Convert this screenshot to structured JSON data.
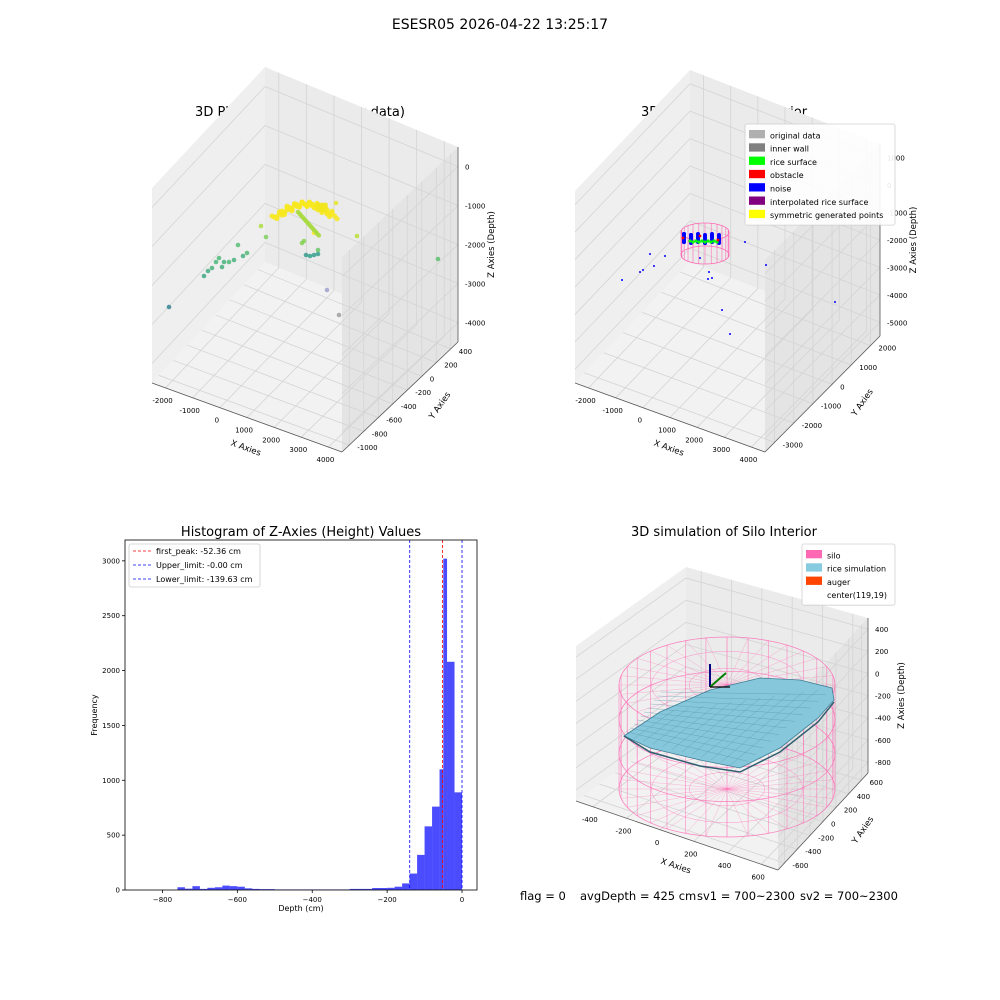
{
  "figure": {
    "suptitle": "ESESR05 2026-04-22 13:25:17",
    "footer": {
      "flag": "flag = 0",
      "avg": "avgDepth = 425 cm",
      "sv1": "sv1 = 700~2300",
      "sv2": "sv2 = 700~2300"
    }
  },
  "chart_data": [
    {
      "type": "scatter",
      "projection": "3d",
      "title": "3D Plot of Silo Interior(row data)",
      "xlabel": "X Axies",
      "ylabel": "Y Axies",
      "zlabel": "Z Axies (Depth)",
      "x_ticks": [
        "-2000",
        "-1000",
        "0",
        "1000",
        "2000",
        "3000",
        "4000"
      ],
      "y_ticks": [
        "-1000",
        "-800",
        "-600",
        "-400",
        "-200",
        "0",
        "200",
        "400"
      ],
      "z_ticks": [
        "0",
        "-1000",
        "-2000",
        "-3000",
        "-4000"
      ],
      "grid": true,
      "colormap": "viridis (by depth)"
    },
    {
      "type": "scatter",
      "projection": "3d",
      "title": "3D classify of Silo Interior",
      "xlabel": "X Axies",
      "ylabel": "Y Axies",
      "zlabel": "Z Axies (Depth)",
      "x_ticks": [
        "-2000",
        "-1000",
        "0",
        "1000",
        "2000",
        "3000",
        "4000"
      ],
      "y_ticks": [
        "-3000",
        "-2000",
        "-1000",
        "0",
        "1000",
        "2000"
      ],
      "z_ticks": [
        "1000",
        "0",
        "-1000",
        "-2000",
        "-3000",
        "-4000",
        "-5000"
      ],
      "legend_position": "top-right",
      "legend": [
        {
          "label": "original data",
          "color": "#b0b0b0"
        },
        {
          "label": "inner wall",
          "color": "#808080"
        },
        {
          "label": "rice surface",
          "color": "#00ff00"
        },
        {
          "label": "obstacle",
          "color": "#ff0000"
        },
        {
          "label": "noise",
          "color": "#0000ff"
        },
        {
          "label": "interpolated rice surface",
          "color": "#800080"
        },
        {
          "label": "symmetric generated points",
          "color": "#ffff00"
        }
      ],
      "grid": true
    },
    {
      "type": "bar",
      "title": "Histogram of Z-Axies (Height) Values",
      "xlabel": "Depth (cm)",
      "ylabel": "Frequency",
      "xlim": [
        -900,
        40
      ],
      "ylim": [
        0,
        3190
      ],
      "x_ticks": [
        -800,
        -600,
        -400,
        -200,
        0
      ],
      "y_ticks": [
        0,
        500,
        1000,
        1500,
        2000,
        2500,
        3000
      ],
      "bar_color": "#0000ff",
      "bins": [
        {
          "x0": -760,
          "x1": -740,
          "count": 25
        },
        {
          "x0": -740,
          "x1": -720,
          "count": 12
        },
        {
          "x0": -720,
          "x1": -700,
          "count": 35
        },
        {
          "x0": -700,
          "x1": -680,
          "count": 10
        },
        {
          "x0": -680,
          "x1": -660,
          "count": 20
        },
        {
          "x0": -660,
          "x1": -640,
          "count": 25
        },
        {
          "x0": -640,
          "x1": -620,
          "count": 40
        },
        {
          "x0": -620,
          "x1": -600,
          "count": 35
        },
        {
          "x0": -600,
          "x1": -580,
          "count": 30
        },
        {
          "x0": -580,
          "x1": -560,
          "count": 15
        },
        {
          "x0": -560,
          "x1": -540,
          "count": 10
        },
        {
          "x0": -540,
          "x1": -500,
          "count": 8
        },
        {
          "x0": -500,
          "x1": -300,
          "count": 5
        },
        {
          "x0": -300,
          "x1": -240,
          "count": 10
        },
        {
          "x0": -240,
          "x1": -200,
          "count": 18
        },
        {
          "x0": -200,
          "x1": -180,
          "count": 20
        },
        {
          "x0": -180,
          "x1": -160,
          "count": 30
        },
        {
          "x0": -160,
          "x1": -140,
          "count": 60
        },
        {
          "x0": -140,
          "x1": -120,
          "count": 150
        },
        {
          "x0": -120,
          "x1": -100,
          "count": 320
        },
        {
          "x0": -100,
          "x1": -80,
          "count": 580
        },
        {
          "x0": -80,
          "x1": -60,
          "count": 760
        },
        {
          "x0": -60,
          "x1": -50,
          "count": 1100
        },
        {
          "x0": -50,
          "x1": -40,
          "count": 3020
        },
        {
          "x0": -40,
          "x1": -20,
          "count": 2080
        },
        {
          "x0": -20,
          "x1": 0,
          "count": 890
        }
      ],
      "vlines": [
        {
          "label": "first_peak: -52.36 cm",
          "x": -52.36,
          "color": "#ff0000"
        },
        {
          "label": "Upper_limit: -0.00 cm",
          "x": 0,
          "color": "#0000ff"
        },
        {
          "label": "Lower_limit: -139.63 cm",
          "x": -139.63,
          "color": "#0000ff"
        }
      ],
      "legend_position": "top-left",
      "grid": false
    },
    {
      "type": "surface",
      "projection": "3d",
      "title": "3D simulation of Silo Interior",
      "xlabel": "X Axies",
      "ylabel": "Y Axies",
      "zlabel": "Z Axies (Depth)",
      "x_ticks": [
        "-400",
        "-200",
        "0",
        "200",
        "400",
        "600"
      ],
      "y_ticks": [
        "-600",
        "-400",
        "-200",
        "0",
        "200",
        "400",
        "600"
      ],
      "z_ticks": [
        "400",
        "200",
        "0",
        "-200",
        "-400",
        "-600",
        "-800"
      ],
      "legend_position": "top-right",
      "legend": [
        {
          "label": "silo",
          "color": "#ff69b4"
        },
        {
          "label": "rice simulation",
          "color": "#87cbe0"
        },
        {
          "label": "auger",
          "color": "#ff4500"
        },
        {
          "label": "center(119,19)",
          "color": ""
        }
      ],
      "grid": true
    }
  ]
}
